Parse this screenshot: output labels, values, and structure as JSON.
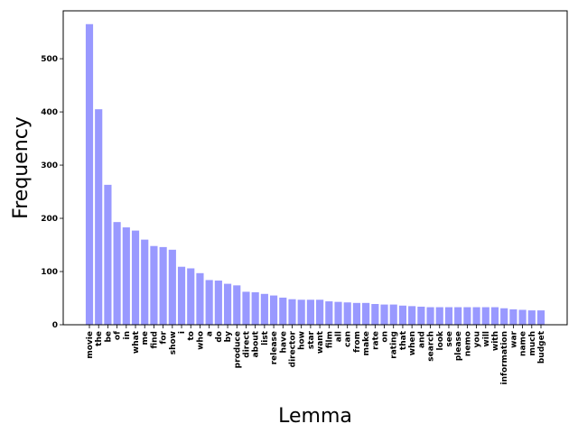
{
  "chart_data": {
    "type": "bar",
    "xlabel": "Lemma",
    "ylabel": "Frequency",
    "ylim": [
      0,
      590
    ],
    "yticks": [
      0,
      100,
      200,
      300,
      400,
      500
    ],
    "bar_color": "#9999ff",
    "categories": [
      "movie",
      "the",
      "be",
      "of",
      "in",
      "what",
      "me",
      "find",
      "for",
      "show",
      "i",
      "to",
      "who",
      "a",
      "do",
      "by",
      "produce",
      "direct",
      "about",
      "list",
      "release",
      "have",
      "director",
      "how",
      "star",
      "want",
      "film",
      "all",
      "can",
      "from",
      "make",
      "rate",
      "on",
      "rating",
      "that",
      "when",
      "and",
      "search",
      "look",
      "see",
      "please",
      "nemo",
      "you",
      "will",
      "with",
      "information",
      "war",
      "name",
      "much",
      "budget"
    ],
    "values": [
      565,
      405,
      263,
      193,
      183,
      177,
      160,
      148,
      146,
      141,
      109,
      106,
      97,
      84,
      83,
      77,
      74,
      62,
      61,
      58,
      55,
      51,
      48,
      47,
      47,
      47,
      44,
      43,
      42,
      41,
      41,
      39,
      38,
      38,
      36,
      35,
      34,
      33,
      33,
      33,
      33,
      33,
      33,
      33,
      33,
      31,
      29,
      28,
      27,
      27
    ]
  }
}
